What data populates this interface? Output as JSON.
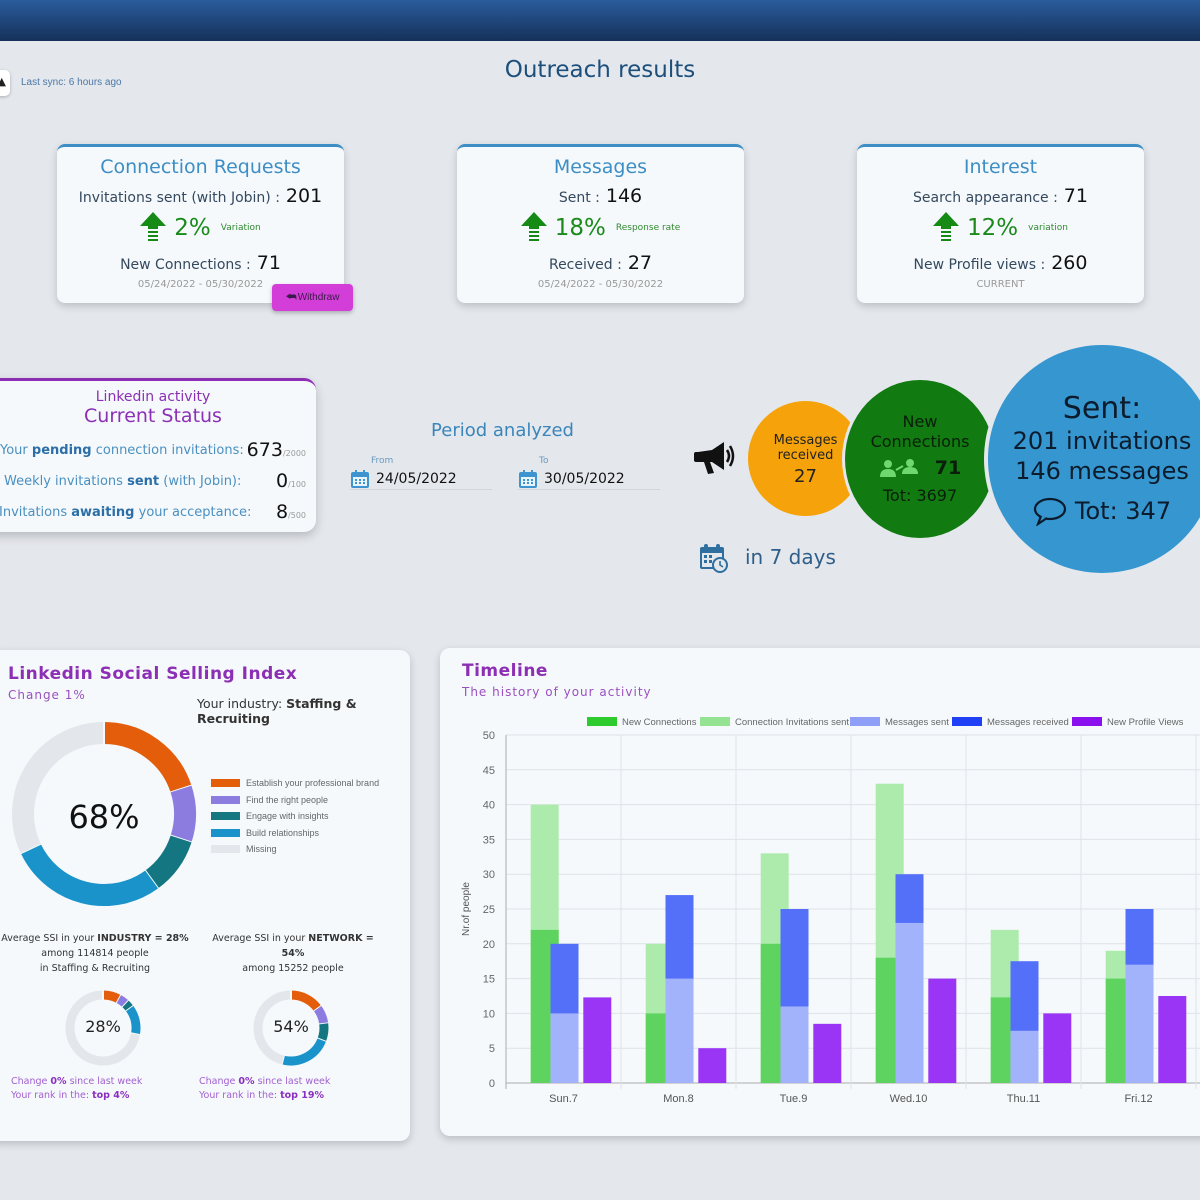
{
  "header": {
    "sync_label": "Last sync: 6 hours ago",
    "title": "Outreach results"
  },
  "cards": [
    {
      "title": "Connection Requests",
      "row1_label": "Invitations sent (with Jobin) :",
      "row1_value": "201",
      "variation_pct": "2%",
      "variation_label": "Variation",
      "row2_label": "New Connections :",
      "row2_value": "71",
      "footer": "05/24/2022 - 05/30/2022"
    },
    {
      "title": "Messages",
      "row1_label": "Sent :",
      "row1_value": "146",
      "variation_pct": "18%",
      "variation_label": "Response rate",
      "row2_label": "Received :",
      "row2_value": "27",
      "footer": "05/24/2022 - 05/30/2022"
    },
    {
      "title": "Interest",
      "row1_label": "Search appearance :",
      "row1_value": "71",
      "variation_pct": "12%",
      "variation_label": "variation",
      "row2_label": "New Profile views :",
      "row2_value": "260",
      "footer": "CURRENT"
    }
  ],
  "withdraw_label": "Withdraw",
  "status": {
    "title1": "Linkedin activity",
    "title2": "Current Status",
    "rows": [
      {
        "pre": "Your ",
        "bold": "pending",
        "post": " connection invitations:",
        "value": "673",
        "max": "/2000"
      },
      {
        "pre": "Weekly invitations ",
        "bold": "sent",
        "post": " (with Jobin):",
        "value": "0",
        "max": "/100"
      },
      {
        "pre": "Invitations ",
        "bold": "awaiting",
        "post": " your acceptance:",
        "value": "8",
        "max": "/500"
      }
    ]
  },
  "period": {
    "title": "Period analyzed",
    "from_label": "From",
    "from_value": "24/05/2022",
    "to_label": "To",
    "to_value": "30/05/2022"
  },
  "bubbles": {
    "messages_label1": "Messages",
    "messages_label2": "received",
    "messages_value": "27",
    "conn_label1": "New",
    "conn_label2": "Connections",
    "conn_value": "71",
    "conn_total": "Tot: 3697",
    "sent_title": "Sent:",
    "sent_line1": "201 invitations",
    "sent_line2": "146 messages",
    "sent_total": "Tot: 347",
    "period_label": "in 7 days"
  },
  "ssi": {
    "title": "Linkedin Social Selling Index",
    "change": "Change 1%",
    "industry_label": "Your industry: ",
    "industry_value": "Staffing & Recruiting",
    "main_value": "68%",
    "segments": [
      {
        "name": "Establish your professional brand",
        "value": 20,
        "color": "#e35d0a"
      },
      {
        "name": "Find the right people",
        "value": 10,
        "color": "#8c7ce0"
      },
      {
        "name": "Engage with insights",
        "value": 10,
        "color": "#137680"
      },
      {
        "name": "Build relationships",
        "value": 28,
        "color": "#1993c9"
      },
      {
        "name": "Missing",
        "value": 32,
        "color": "#e3e6ea"
      }
    ],
    "industry": {
      "line1_pre": "Average SSI in your ",
      "line1_bold": "INDUSTRY = 28%",
      "line2": "among 114814 people",
      "line3": "in Staffing & Recruiting",
      "value": "28%",
      "segments": [
        8,
        4,
        3,
        13,
        72
      ],
      "change_pre": "Change ",
      "change_bold": "0%",
      "change_post": " since last week",
      "rank_pre": "Your rank in the: ",
      "rank_bold": "top 4%"
    },
    "network": {
      "line1_pre": "Average SSI in your ",
      "line1_bold": "NETWORK = 54%",
      "line2": "among 15252 people",
      "value": "54%",
      "segments": [
        15,
        8,
        8,
        23,
        46
      ],
      "change_pre": "Change ",
      "change_bold": "0%",
      "change_post": " since last week",
      "rank_pre": "Your rank in the: ",
      "rank_bold": "top 19%"
    }
  },
  "timeline": {
    "title": "Timeline",
    "subtitle": "The history of your activity"
  },
  "chart_data": {
    "type": "bar",
    "title": "Timeline",
    "subtitle": "The history of your activity",
    "xlabel": "",
    "ylabel": "Nr.of people",
    "ylim": [
      0,
      50
    ],
    "yticks": [
      0,
      5,
      10,
      15,
      20,
      25,
      30,
      35,
      40,
      45,
      50
    ],
    "grid": true,
    "legend_position": "top-right",
    "categories": [
      "Sun.7",
      "Mon.8",
      "Tue.9",
      "Wed.10",
      "Thu.11",
      "Fri.12"
    ],
    "series": [
      {
        "name": "New Connections",
        "color": "#5fd35f",
        "stack": "connections",
        "values": [
          22,
          10,
          20,
          18,
          12.3,
          15
        ]
      },
      {
        "name": "Connection Invitations sent",
        "color": "#acebac",
        "stack": "connections",
        "values": [
          40,
          20,
          33,
          43,
          22,
          19
        ]
      },
      {
        "name": "Messages sent",
        "color": "#a3b3fb",
        "stack": "messages",
        "values": [
          10,
          15,
          11,
          23,
          7.5,
          17
        ]
      },
      {
        "name": "Messages received",
        "color": "#5470f8",
        "stack": "messages",
        "values": [
          20,
          27,
          25,
          30,
          17.5,
          25
        ]
      },
      {
        "name": "New Profile Views",
        "color": "#9a35f5",
        "stack": "views",
        "values": [
          12.3,
          5,
          8.5,
          15,
          10,
          12.5
        ]
      }
    ],
    "legend_colors": [
      "#2ecb2e",
      "#93e393",
      "#8f9ff7",
      "#2040f5",
      "#8a10ee"
    ]
  }
}
